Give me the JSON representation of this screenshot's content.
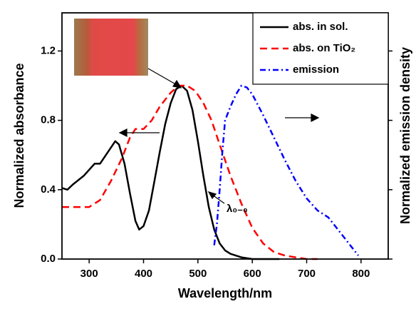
{
  "chart_data": {
    "type": "line",
    "x_label": "Wavelength/nm",
    "y_label": "Normalized absorbance",
    "y2_label": "Normalized emission density",
    "xlim": [
      250,
      850
    ],
    "ylim": [
      0,
      1.42
    ],
    "xticks": [
      300,
      400,
      500,
      600,
      700,
      800
    ],
    "yticks": [
      {
        "value": 0,
        "label": "0.0"
      },
      {
        "value": 0.4,
        "label": "0.4"
      },
      {
        "value": 0.8,
        "label": "0.8"
      },
      {
        "value": 1.2,
        "label": "1.2"
      }
    ],
    "legend": "upper right",
    "annotation": "λ₀₋₀",
    "series": [
      {
        "name": "abs. in sol.",
        "color": "#000000",
        "style": "solid",
        "x": [
          250,
          260,
          270,
          290,
          310,
          320,
          335,
          348,
          355,
          365,
          375,
          385,
          392,
          400,
          410,
          420,
          430,
          440,
          450,
          460,
          470,
          480,
          490,
          500,
          510,
          520,
          530,
          540,
          550,
          560,
          580,
          600,
          650
        ],
        "values": [
          0.41,
          0.4,
          0.43,
          0.48,
          0.55,
          0.55,
          0.62,
          0.68,
          0.66,
          0.55,
          0.38,
          0.22,
          0.17,
          0.19,
          0.28,
          0.45,
          0.62,
          0.78,
          0.9,
          0.98,
          1.0,
          0.97,
          0.86,
          0.68,
          0.48,
          0.3,
          0.17,
          0.09,
          0.05,
          0.03,
          0.01,
          0.0,
          0.0
        ]
      },
      {
        "name": "abs. on TiO₂",
        "color": "#ff0000",
        "style": "dashed",
        "x": [
          250,
          280,
          300,
          320,
          340,
          360,
          375,
          385,
          400,
          415,
          430,
          450,
          465,
          480,
          495,
          510,
          525,
          540,
          560,
          580,
          600,
          620,
          640,
          660,
          680,
          700,
          720
        ],
        "values": [
          0.3,
          0.3,
          0.3,
          0.34,
          0.45,
          0.58,
          0.7,
          0.75,
          0.75,
          0.8,
          0.88,
          0.96,
          1.0,
          1.0,
          0.97,
          0.9,
          0.8,
          0.66,
          0.48,
          0.32,
          0.18,
          0.09,
          0.04,
          0.02,
          0.01,
          0.0,
          0.0
        ]
      },
      {
        "name": "emission",
        "color": "#0000ff",
        "style": "dashdot",
        "x": [
          530,
          535,
          540,
          545,
          550,
          560,
          570,
          580,
          590,
          600,
          620,
          640,
          660,
          680,
          700,
          720,
          740,
          760,
          780,
          795
        ],
        "values": [
          0.08,
          0.2,
          0.4,
          0.62,
          0.8,
          0.88,
          0.95,
          1.0,
          0.99,
          0.95,
          0.83,
          0.7,
          0.57,
          0.45,
          0.35,
          0.28,
          0.24,
          0.16,
          0.08,
          0.02
        ]
      }
    ]
  }
}
